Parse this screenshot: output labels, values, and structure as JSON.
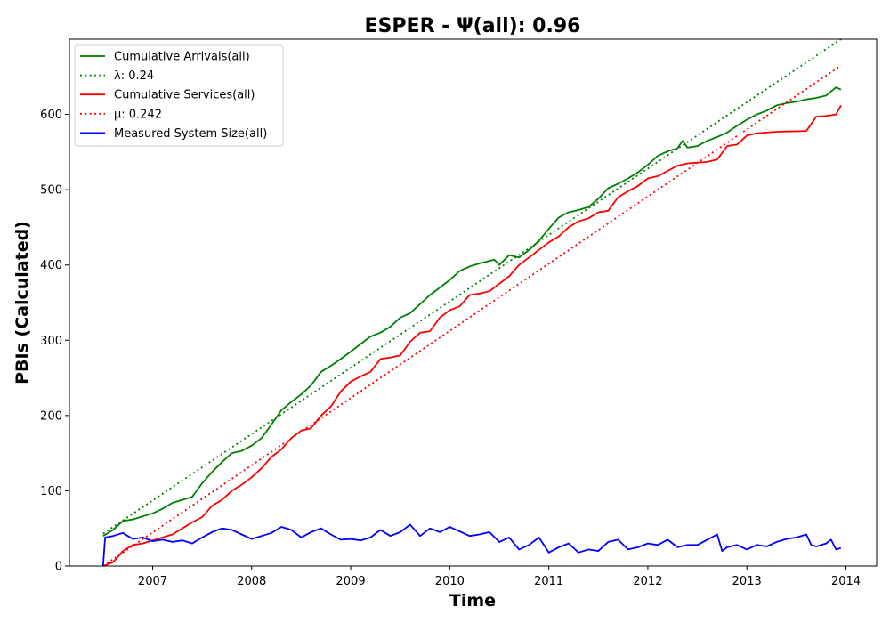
{
  "chart_data": {
    "type": "line",
    "title": "ESPER -  Ψ(all): 0.96",
    "xlabel": "Time",
    "ylabel": "PBIs (Calculated)",
    "xlim": [
      2006.16,
      2014.31
    ],
    "ylim": [
      0,
      700
    ],
    "x_ticks": [
      2007,
      2008,
      2009,
      2010,
      2011,
      2012,
      2013,
      2014
    ],
    "y_ticks": [
      0,
      100,
      200,
      300,
      400,
      500,
      600
    ],
    "grid": false,
    "legend_position": "upper-left",
    "series": [
      {
        "name": "Cumulative Arrivals(all)",
        "style": "solid",
        "color": "#008000",
        "points": [
          [
            2006.5,
            40
          ],
          [
            2006.6,
            48
          ],
          [
            2006.7,
            60
          ],
          [
            2006.8,
            62
          ],
          [
            2006.9,
            66
          ],
          [
            2007.0,
            70
          ],
          [
            2007.1,
            76
          ],
          [
            2007.2,
            84
          ],
          [
            2007.3,
            88
          ],
          [
            2007.4,
            92
          ],
          [
            2007.5,
            110
          ],
          [
            2007.6,
            125
          ],
          [
            2007.7,
            138
          ],
          [
            2007.8,
            150
          ],
          [
            2007.9,
            153
          ],
          [
            2008.0,
            160
          ],
          [
            2008.1,
            170
          ],
          [
            2008.2,
            188
          ],
          [
            2008.3,
            207
          ],
          [
            2008.4,
            218
          ],
          [
            2008.5,
            228
          ],
          [
            2008.6,
            240
          ],
          [
            2008.7,
            258
          ],
          [
            2008.8,
            266
          ],
          [
            2008.9,
            275
          ],
          [
            2009.0,
            285
          ],
          [
            2009.1,
            295
          ],
          [
            2009.2,
            305
          ],
          [
            2009.3,
            310
          ],
          [
            2009.4,
            318
          ],
          [
            2009.5,
            330
          ],
          [
            2009.6,
            336
          ],
          [
            2009.7,
            348
          ],
          [
            2009.8,
            360
          ],
          [
            2009.9,
            370
          ],
          [
            2010.0,
            380
          ],
          [
            2010.1,
            392
          ],
          [
            2010.2,
            398
          ],
          [
            2010.3,
            402
          ],
          [
            2010.45,
            407
          ],
          [
            2010.5,
            400
          ],
          [
            2010.6,
            413
          ],
          [
            2010.7,
            410
          ],
          [
            2010.8,
            420
          ],
          [
            2010.9,
            432
          ],
          [
            2011.0,
            448
          ],
          [
            2011.1,
            463
          ],
          [
            2011.2,
            470
          ],
          [
            2011.3,
            473
          ],
          [
            2011.4,
            477
          ],
          [
            2011.5,
            488
          ],
          [
            2011.6,
            502
          ],
          [
            2011.7,
            508
          ],
          [
            2011.8,
            515
          ],
          [
            2011.9,
            523
          ],
          [
            2012.0,
            533
          ],
          [
            2012.1,
            545
          ],
          [
            2012.2,
            551
          ],
          [
            2012.3,
            555
          ],
          [
            2012.35,
            565
          ],
          [
            2012.4,
            556
          ],
          [
            2012.5,
            558
          ],
          [
            2012.6,
            565
          ],
          [
            2012.7,
            570
          ],
          [
            2012.8,
            576
          ],
          [
            2012.9,
            585
          ],
          [
            2013.0,
            593
          ],
          [
            2013.1,
            600
          ],
          [
            2013.2,
            605
          ],
          [
            2013.3,
            612
          ],
          [
            2013.4,
            615
          ],
          [
            2013.5,
            617
          ],
          [
            2013.6,
            620
          ],
          [
            2013.7,
            622
          ],
          [
            2013.8,
            625
          ],
          [
            2013.9,
            636
          ],
          [
            2013.95,
            633
          ]
        ]
      },
      {
        "name": "λ: 0.24",
        "style": "dotted",
        "color": "#008000",
        "points": [
          [
            2006.5,
            43
          ],
          [
            2013.95,
            700
          ]
        ]
      },
      {
        "name": "Cumulative Services(all)",
        "style": "solid",
        "color": "#ff0000",
        "points": [
          [
            2006.5,
            0
          ],
          [
            2006.6,
            5
          ],
          [
            2006.7,
            20
          ],
          [
            2006.8,
            28
          ],
          [
            2006.9,
            30
          ],
          [
            2007.0,
            34
          ],
          [
            2007.1,
            38
          ],
          [
            2007.2,
            42
          ],
          [
            2007.3,
            50
          ],
          [
            2007.4,
            58
          ],
          [
            2007.5,
            65
          ],
          [
            2007.6,
            80
          ],
          [
            2007.7,
            88
          ],
          [
            2007.8,
            100
          ],
          [
            2007.9,
            108
          ],
          [
            2008.0,
            118
          ],
          [
            2008.1,
            130
          ],
          [
            2008.2,
            145
          ],
          [
            2008.3,
            155
          ],
          [
            2008.4,
            170
          ],
          [
            2008.5,
            180
          ],
          [
            2008.6,
            183
          ],
          [
            2008.7,
            200
          ],
          [
            2008.8,
            212
          ],
          [
            2008.9,
            232
          ],
          [
            2009.0,
            245
          ],
          [
            2009.1,
            252
          ],
          [
            2009.2,
            258
          ],
          [
            2009.3,
            275
          ],
          [
            2009.4,
            277
          ],
          [
            2009.5,
            280
          ],
          [
            2009.6,
            298
          ],
          [
            2009.7,
            310
          ],
          [
            2009.8,
            312
          ],
          [
            2009.9,
            330
          ],
          [
            2010.0,
            340
          ],
          [
            2010.1,
            345
          ],
          [
            2010.2,
            360
          ],
          [
            2010.3,
            362
          ],
          [
            2010.4,
            365
          ],
          [
            2010.5,
            375
          ],
          [
            2010.6,
            385
          ],
          [
            2010.7,
            400
          ],
          [
            2010.8,
            410
          ],
          [
            2010.9,
            420
          ],
          [
            2011.0,
            430
          ],
          [
            2011.1,
            438
          ],
          [
            2011.2,
            450
          ],
          [
            2011.3,
            458
          ],
          [
            2011.4,
            462
          ],
          [
            2011.5,
            470
          ],
          [
            2011.6,
            472
          ],
          [
            2011.7,
            490
          ],
          [
            2011.8,
            498
          ],
          [
            2011.9,
            505
          ],
          [
            2012.0,
            515
          ],
          [
            2012.1,
            518
          ],
          [
            2012.2,
            525
          ],
          [
            2012.3,
            532
          ],
          [
            2012.4,
            535
          ],
          [
            2012.5,
            536
          ],
          [
            2012.6,
            537
          ],
          [
            2012.7,
            540
          ],
          [
            2012.8,
            558
          ],
          [
            2012.9,
            560
          ],
          [
            2013.0,
            572
          ],
          [
            2013.1,
            575
          ],
          [
            2013.2,
            576
          ],
          [
            2013.3,
            577
          ],
          [
            2013.6,
            578
          ],
          [
            2013.7,
            597
          ],
          [
            2013.8,
            598
          ],
          [
            2013.9,
            600
          ],
          [
            2013.95,
            612
          ]
        ]
      },
      {
        "name": "μ: 0.242",
        "style": "dotted",
        "color": "#ff0000",
        "points": [
          [
            2006.5,
            0
          ],
          [
            2013.95,
            665
          ]
        ]
      },
      {
        "name": "Measured System Size(all)",
        "style": "solid",
        "color": "#0000ff",
        "points": [
          [
            2006.5,
            0
          ],
          [
            2006.52,
            38
          ],
          [
            2006.6,
            40
          ],
          [
            2006.7,
            44
          ],
          [
            2006.8,
            36
          ],
          [
            2006.9,
            38
          ],
          [
            2007.0,
            33
          ],
          [
            2007.1,
            35
          ],
          [
            2007.2,
            32
          ],
          [
            2007.3,
            34
          ],
          [
            2007.4,
            30
          ],
          [
            2007.5,
            38
          ],
          [
            2007.6,
            45
          ],
          [
            2007.7,
            50
          ],
          [
            2007.8,
            48
          ],
          [
            2007.9,
            42
          ],
          [
            2008.0,
            36
          ],
          [
            2008.1,
            40
          ],
          [
            2008.2,
            44
          ],
          [
            2008.3,
            52
          ],
          [
            2008.4,
            48
          ],
          [
            2008.5,
            38
          ],
          [
            2008.6,
            45
          ],
          [
            2008.7,
            50
          ],
          [
            2008.8,
            42
          ],
          [
            2008.9,
            35
          ],
          [
            2009.0,
            36
          ],
          [
            2009.1,
            34
          ],
          [
            2009.2,
            38
          ],
          [
            2009.3,
            48
          ],
          [
            2009.4,
            40
          ],
          [
            2009.5,
            45
          ],
          [
            2009.6,
            55
          ],
          [
            2009.7,
            40
          ],
          [
            2009.8,
            50
          ],
          [
            2009.9,
            45
          ],
          [
            2010.0,
            52
          ],
          [
            2010.1,
            46
          ],
          [
            2010.2,
            40
          ],
          [
            2010.3,
            42
          ],
          [
            2010.4,
            45
          ],
          [
            2010.5,
            32
          ],
          [
            2010.6,
            38
          ],
          [
            2010.7,
            22
          ],
          [
            2010.8,
            28
          ],
          [
            2010.9,
            38
          ],
          [
            2011.0,
            18
          ],
          [
            2011.1,
            25
          ],
          [
            2011.2,
            30
          ],
          [
            2011.3,
            18
          ],
          [
            2011.4,
            22
          ],
          [
            2011.5,
            20
          ],
          [
            2011.6,
            32
          ],
          [
            2011.7,
            35
          ],
          [
            2011.8,
            22
          ],
          [
            2011.9,
            25
          ],
          [
            2012.0,
            30
          ],
          [
            2012.1,
            28
          ],
          [
            2012.2,
            35
          ],
          [
            2012.3,
            25
          ],
          [
            2012.4,
            28
          ],
          [
            2012.5,
            28
          ],
          [
            2012.6,
            35
          ],
          [
            2012.7,
            42
          ],
          [
            2012.75,
            20
          ],
          [
            2012.8,
            25
          ],
          [
            2012.9,
            28
          ],
          [
            2013.0,
            22
          ],
          [
            2013.1,
            28
          ],
          [
            2013.2,
            26
          ],
          [
            2013.3,
            32
          ],
          [
            2013.4,
            36
          ],
          [
            2013.5,
            38
          ],
          [
            2013.6,
            42
          ],
          [
            2013.65,
            28
          ],
          [
            2013.7,
            26
          ],
          [
            2013.8,
            30
          ],
          [
            2013.85,
            35
          ],
          [
            2013.9,
            22
          ],
          [
            2013.95,
            24
          ]
        ]
      }
    ]
  }
}
